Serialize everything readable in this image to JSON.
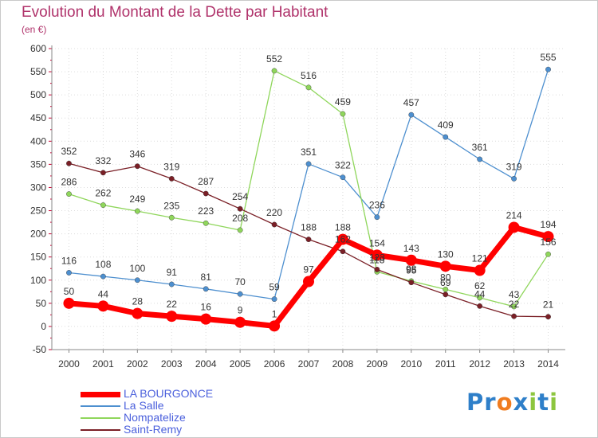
{
  "chart_data": {
    "type": "line",
    "title": "Evolution du Montant de la Dette par Habitant",
    "subtitle": "(en €)",
    "x": [
      "2000",
      "2001",
      "2002",
      "2003",
      "2004",
      "2005",
      "2006",
      "2007",
      "2008",
      "2009",
      "2010",
      "2011",
      "2012",
      "2013",
      "2014"
    ],
    "ylim": [
      -50,
      600
    ],
    "yticks": [
      -50,
      0,
      50,
      100,
      150,
      200,
      250,
      300,
      350,
      400,
      450,
      500,
      550,
      600
    ],
    "grid": true,
    "legend_position": "bottom-left",
    "series": [
      {
        "name": "LA BOURGONCE",
        "color": "#ff0000",
        "values": [
          50,
          44,
          28,
          22,
          16,
          9,
          1,
          97,
          188,
          154,
          143,
          130,
          121,
          214,
          194
        ]
      },
      {
        "name": "La Salle",
        "color": "#4d8fcf",
        "values": [
          116,
          108,
          100,
          91,
          81,
          70,
          59,
          351,
          322,
          236,
          457,
          409,
          361,
          319,
          555
        ]
      },
      {
        "name": "Nompatelize",
        "color": "#8fd65b",
        "values": [
          286,
          262,
          249,
          235,
          223,
          208,
          552,
          516,
          459,
          118,
          98,
          80,
          62,
          43,
          156
        ]
      },
      {
        "name": "Saint-Remy",
        "color": "#7a1f26",
        "values": [
          352,
          332,
          346,
          319,
          287,
          254,
          220,
          188,
          162,
          123,
          95,
          69,
          44,
          22,
          21
        ]
      }
    ]
  },
  "brand": {
    "letters": [
      {
        "char": "P",
        "color": "#2e7fc9"
      },
      {
        "char": "r",
        "color": "#2e7fc9"
      },
      {
        "char": "o",
        "color": "#f07c1f"
      },
      {
        "char": "x",
        "color": "#2e7fc9"
      },
      {
        "char": "i",
        "color": "#8dc63f"
      },
      {
        "char": "t",
        "color": "#2e7fc9"
      },
      {
        "char": "i",
        "color": "#8dc63f"
      }
    ]
  }
}
